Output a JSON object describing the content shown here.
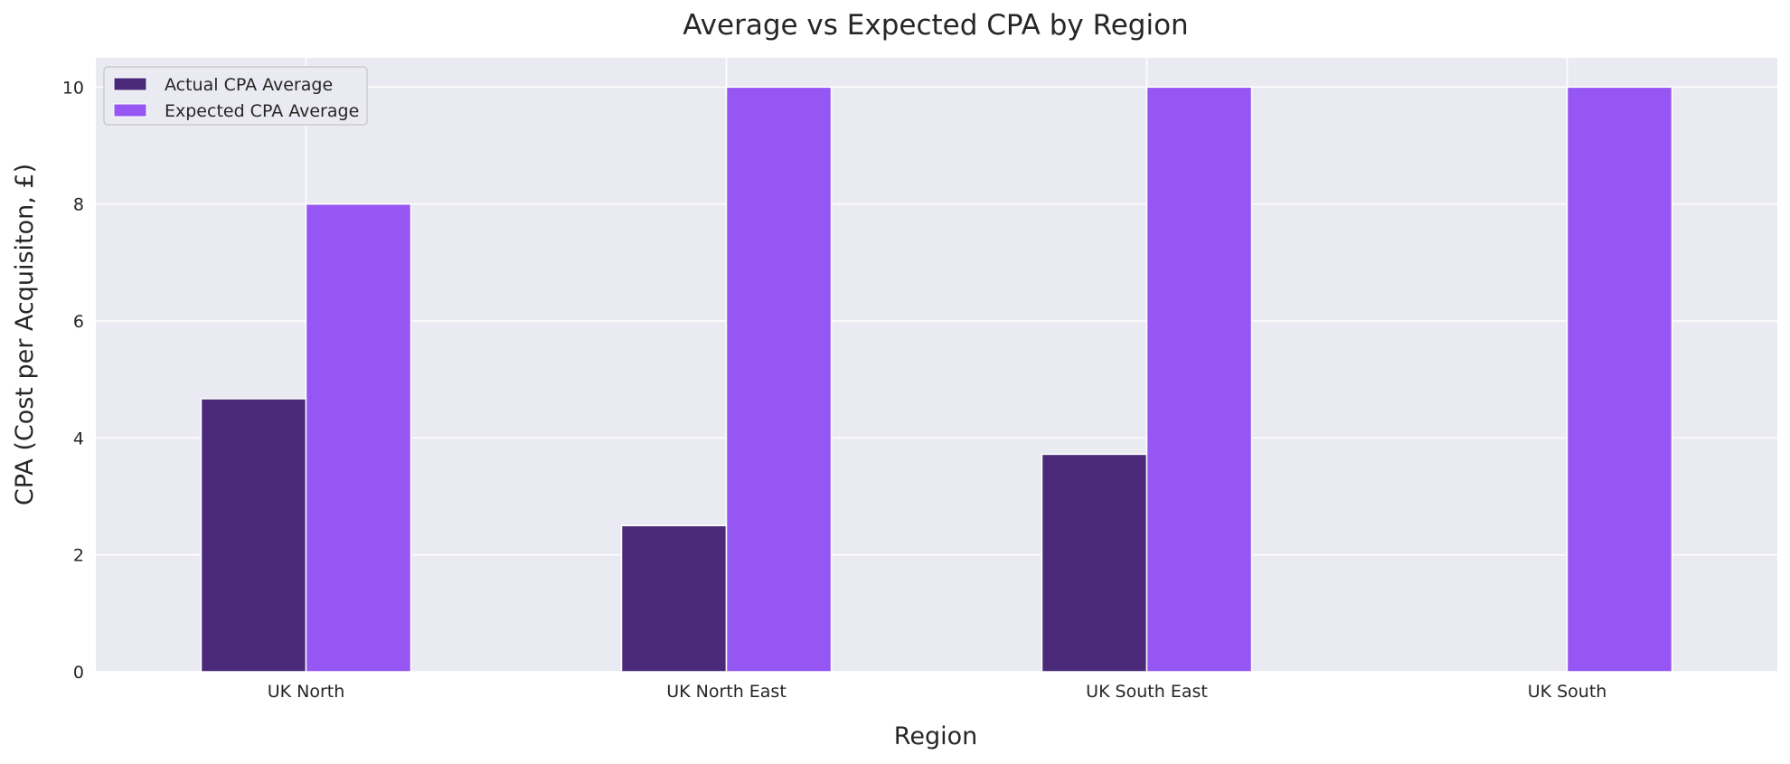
{
  "chart_data": {
    "type": "bar",
    "title": "Average vs Expected CPA by Region",
    "xlabel": "Region",
    "ylabel": "CPA (Cost per Acquisiton, £)",
    "categories": [
      "UK North",
      "UK North East",
      "UK South East",
      "UK South"
    ],
    "series": [
      {
        "name": "Actual CPA Average",
        "color": "#4a2a78",
        "values": [
          4.67,
          2.5,
          3.72,
          0
        ]
      },
      {
        "name": "Expected CPA Average",
        "color": "#9556f3",
        "values": [
          8,
          10,
          10,
          10
        ]
      }
    ],
    "ylim": [
      0,
      10.5
    ],
    "yticks": [
      0,
      2,
      4,
      6,
      8,
      10
    ],
    "grid": true,
    "legend_position": "top-left",
    "background_color": "#eaeaf2",
    "grid_color": "#ffffff"
  }
}
